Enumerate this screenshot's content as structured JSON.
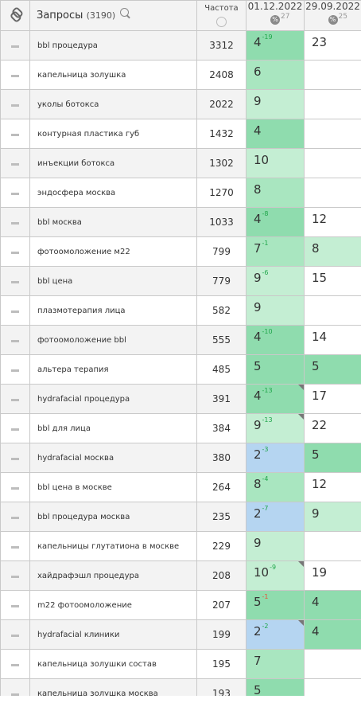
{
  "header": {
    "title": "Запросы",
    "count": "(3190)",
    "freq": "Частота",
    "dates": [
      {
        "label": "01.12.2022",
        "sub": "27"
      },
      {
        "label": "29.09.2022",
        "sub": "25"
      }
    ],
    "pct_icon": "%"
  },
  "rows": [
    {
      "kw": "bbl процедура",
      "freq": "3312",
      "p1": "4",
      "d1": "-19",
      "p1c": "green",
      "p2": "23",
      "p2c": "white"
    },
    {
      "kw": "капельница золушка",
      "freq": "2408",
      "p1": "6",
      "p1c": "mid",
      "p2": "",
      "p2c": "empty"
    },
    {
      "kw": "уколы ботокса",
      "freq": "2022",
      "p1": "9",
      "p1c": "light",
      "p2": "",
      "p2c": "empty"
    },
    {
      "kw": "контурная пластика губ",
      "freq": "1432",
      "p1": "4",
      "p1c": "green",
      "p2": "",
      "p2c": "empty"
    },
    {
      "kw": "инъекции ботокса",
      "freq": "1302",
      "p1": "10",
      "p1c": "light",
      "p2": "",
      "p2c": "empty"
    },
    {
      "kw": "эндосфера москва",
      "freq": "1270",
      "p1": "8",
      "p1c": "mid",
      "p2": "",
      "p2c": "empty"
    },
    {
      "kw": "bbl москва",
      "freq": "1033",
      "p1": "4",
      "d1": "-8",
      "p1c": "green",
      "p2": "12",
      "p2c": "white"
    },
    {
      "kw": "фотоомоложение м22",
      "freq": "799",
      "p1": "7",
      "d1": "-1",
      "p1c": "mid",
      "p2": "8",
      "p2c": "light"
    },
    {
      "kw": "bbl цена",
      "freq": "779",
      "p1": "9",
      "d1": "-6",
      "p1c": "light",
      "p2": "15",
      "p2c": "white"
    },
    {
      "kw": "плазмотерапия лица",
      "freq": "582",
      "p1": "9",
      "p1c": "light",
      "p2": "",
      "p2c": "empty"
    },
    {
      "kw": "фотоомоложение bbl",
      "freq": "555",
      "p1": "4",
      "d1": "-10",
      "p1c": "green",
      "p2": "14",
      "p2c": "white"
    },
    {
      "kw": "альтера терапия",
      "freq": "485",
      "p1": "5",
      "p1c": "green",
      "p2": "5",
      "p2c": "green"
    },
    {
      "kw": "hydrafacial процедура",
      "freq": "391",
      "p1": "4",
      "d1": "-13",
      "p1c": "green",
      "p2": "17",
      "p2c": "white",
      "flag": true
    },
    {
      "kw": "bbl для лица",
      "freq": "384",
      "p1": "9",
      "d1": "-13",
      "p1c": "light",
      "p2": "22",
      "p2c": "white",
      "flag": true
    },
    {
      "kw": "hydrafacial москва",
      "freq": "380",
      "p1": "2",
      "d1": "-3",
      "p1c": "blue",
      "p2": "5",
      "p2c": "green"
    },
    {
      "kw": "bbl цена в москве",
      "freq": "264",
      "p1": "8",
      "d1": "-4",
      "p1c": "mid",
      "p2": "12",
      "p2c": "white"
    },
    {
      "kw": "bbl процедура москва",
      "freq": "235",
      "p1": "2",
      "d1": "-7",
      "p1c": "blue",
      "p2": "9",
      "p2c": "light"
    },
    {
      "kw": "капельницы глутатиона в москве",
      "freq": "229",
      "p1": "9",
      "p1c": "light",
      "p2": "",
      "p2c": "empty"
    },
    {
      "kw": "хайдрафэшл процедура",
      "freq": "208",
      "p1": "10",
      "d1": "-9",
      "p1c": "light",
      "p2": "19",
      "p2c": "white",
      "flag": true
    },
    {
      "kw": "m22 фотоомоложение",
      "freq": "207",
      "p1": "5",
      "d1": "-1",
      "neg": true,
      "p1c": "green",
      "p2": "4",
      "p2c": "green"
    },
    {
      "kw": "hydrafacial клиники",
      "freq": "199",
      "p1": "2",
      "d1": "-2",
      "p1c": "blue",
      "p2": "4",
      "p2c": "green",
      "flag": true
    },
    {
      "kw": "капельница золушки состав",
      "freq": "195",
      "p1": "7",
      "p1c": "mid",
      "p2": "",
      "p2c": "empty"
    },
    {
      "kw": "капельница золушка москва",
      "freq": "193",
      "p1": "5",
      "p1c": "green",
      "p2": "",
      "p2c": "empty"
    }
  ],
  "colors": {
    "green": "#8fdcae",
    "mid": "#a9e6c0",
    "light": "#c4eed3",
    "blue": "#b5d5f1",
    "white": "#ffffff",
    "delta_pos": "#1fa64a",
    "delta_neg": "#e3563c"
  },
  "icons": {
    "link": "link-icon",
    "search": "search-icon",
    "globe": "globe-icon",
    "percent": "percent-icon",
    "row_toggle": "dash-icon",
    "position_flag": "corner-flag-icon"
  }
}
